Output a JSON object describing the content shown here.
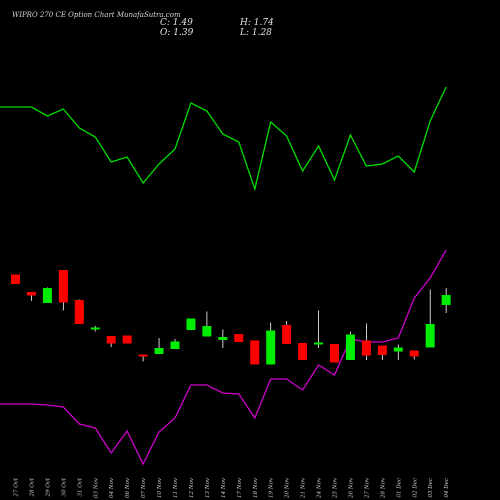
{
  "header": {
    "title": "WIPRO 270  CE Option  Chart MunafaSutra.com",
    "close_label": "C: 1.49",
    "high_label": "H: 1.74",
    "open_label": "O: 1.39",
    "low_label": "L: 1.28"
  },
  "chart_data": {
    "type": "candlestick",
    "title": "WIPRO 270  CE Option  Chart MunafaSutra.com",
    "dates": [
      "27 Oct",
      "28 Oct",
      "29 Oct",
      "30 Oct",
      "31 Oct",
      "03 Nov",
      "04 Nov",
      "06 Nov",
      "07 Nov",
      "10 Nov",
      "11 Nov",
      "12 Nov",
      "13 Nov",
      "14 Nov",
      "17 Nov",
      "18 Nov",
      "19 Nov",
      "20 Nov",
      "21 Nov",
      "24 Nov",
      "25 Nov",
      "26 Nov",
      "27 Nov",
      "28 Nov",
      "01 Dec",
      "02 Dec",
      "03 Dec",
      "04 Dec"
    ],
    "candles": [
      {
        "open": 8.55,
        "close": 7.6,
        "high": 8.55,
        "low": 7.6,
        "color": "red"
      },
      {
        "open": 6.8,
        "close": 6.45,
        "high": 6.8,
        "low": 5.9,
        "color": "red"
      },
      {
        "open": 5.7,
        "close": 7.2,
        "high": 7.25,
        "low": 5.7,
        "color": "green"
      },
      {
        "open": 9.0,
        "close": 5.75,
        "high": 9.0,
        "low": 4.95,
        "color": "red"
      },
      {
        "open": 6.0,
        "close": 3.6,
        "high": 6.05,
        "low": 3.6,
        "color": "red"
      },
      {
        "open": 3.1,
        "close": 3.25,
        "high": 3.4,
        "low": 2.85,
        "color": "green"
      },
      {
        "open": 2.4,
        "close": 1.65,
        "high": 2.4,
        "low": 1.3,
        "color": "red"
      },
      {
        "open": 2.45,
        "close": 1.65,
        "high": 2.45,
        "low": 1.65,
        "color": "red"
      },
      {
        "open": 0.55,
        "close": 0.4,
        "high": 0.55,
        "low": -0.15,
        "color": "red"
      },
      {
        "open": 0.6,
        "close": 1.2,
        "high": 2.2,
        "low": 0.6,
        "color": "green"
      },
      {
        "open": 1.1,
        "close": 1.85,
        "high": 2.1,
        "low": 1.1,
        "color": "green"
      },
      {
        "open": 3.0,
        "close": 4.15,
        "high": 4.15,
        "low": 3.0,
        "color": "green"
      },
      {
        "open": 2.35,
        "close": 3.4,
        "high": 4.85,
        "low": 2.35,
        "color": "green"
      },
      {
        "open": 2.0,
        "close": 2.3,
        "high": 3.05,
        "low": 1.2,
        "color": "green"
      },
      {
        "open": 2.6,
        "close": 1.8,
        "high": 2.6,
        "low": 1.8,
        "color": "red"
      },
      {
        "open": 1.95,
        "close": -0.45,
        "high": 1.95,
        "low": -0.45,
        "color": "red"
      },
      {
        "open": -0.45,
        "close": 2.95,
        "high": 3.75,
        "low": -0.45,
        "color": "green"
      },
      {
        "open": 3.5,
        "close": 1.6,
        "high": 3.9,
        "low": 1.6,
        "color": "red"
      },
      {
        "open": 1.7,
        "close": 0.0,
        "high": 1.7,
        "low": 0.0,
        "color": "red"
      },
      {
        "open": 1.6,
        "close": 1.75,
        "high": 4.95,
        "low": 1.2,
        "color": "green"
      },
      {
        "open": 1.6,
        "close": -0.25,
        "high": 1.6,
        "low": -0.25,
        "color": "red"
      },
      {
        "open": 0.0,
        "close": 2.55,
        "high": 2.85,
        "low": 0.0,
        "color": "green"
      },
      {
        "open": 1.95,
        "close": 0.45,
        "high": 3.65,
        "low": 0.0,
        "color": "red"
      },
      {
        "open": 1.45,
        "close": 0.5,
        "high": 1.45,
        "low": 0.0,
        "color": "red"
      },
      {
        "open": 0.85,
        "close": 1.25,
        "high": 1.55,
        "low": 0.0,
        "color": "green"
      },
      {
        "open": 0.95,
        "close": 0.35,
        "high": 0.95,
        "low": 0.05,
        "color": "red"
      },
      {
        "open": 1.25,
        "close": 3.6,
        "high": 7.05,
        "low": 1.25,
        "color": "green"
      },
      {
        "open": 5.5,
        "close": 6.5,
        "high": 7.2,
        "low": 4.7,
        "color": "green"
      }
    ],
    "lines": [
      {
        "color": "#00dd00",
        "values": [
          25.3,
          25.3,
          24.4,
          25.1,
          23.2,
          22.3,
          19.8,
          20.3,
          17.7,
          19.6,
          21.1,
          25.7,
          24.9,
          22.6,
          21.8,
          17.1,
          23.8,
          22.4,
          18.9,
          21.4,
          18.0,
          22.5,
          19.4,
          19.6,
          20.4,
          18.8,
          23.9,
          27.3
        ]
      },
      {
        "color": "#cc00cc",
        "values": [
          -4.4,
          -4.4,
          -4.5,
          -4.7,
          -6.4,
          -6.8,
          -9.3,
          -7.1,
          -10.4,
          -7.2,
          -5.8,
          -2.5,
          -2.5,
          -3.3,
          -3.4,
          -5.8,
          -1.9,
          -1.9,
          -3.0,
          -0.5,
          -1.5,
          2.1,
          1.8,
          1.8,
          2.2,
          6.2,
          8.2,
          11.0
        ]
      }
    ],
    "colors": {
      "up": "#00ee00",
      "down": "#ff0000",
      "wick": "#ffffff",
      "background": "#000000"
    }
  }
}
